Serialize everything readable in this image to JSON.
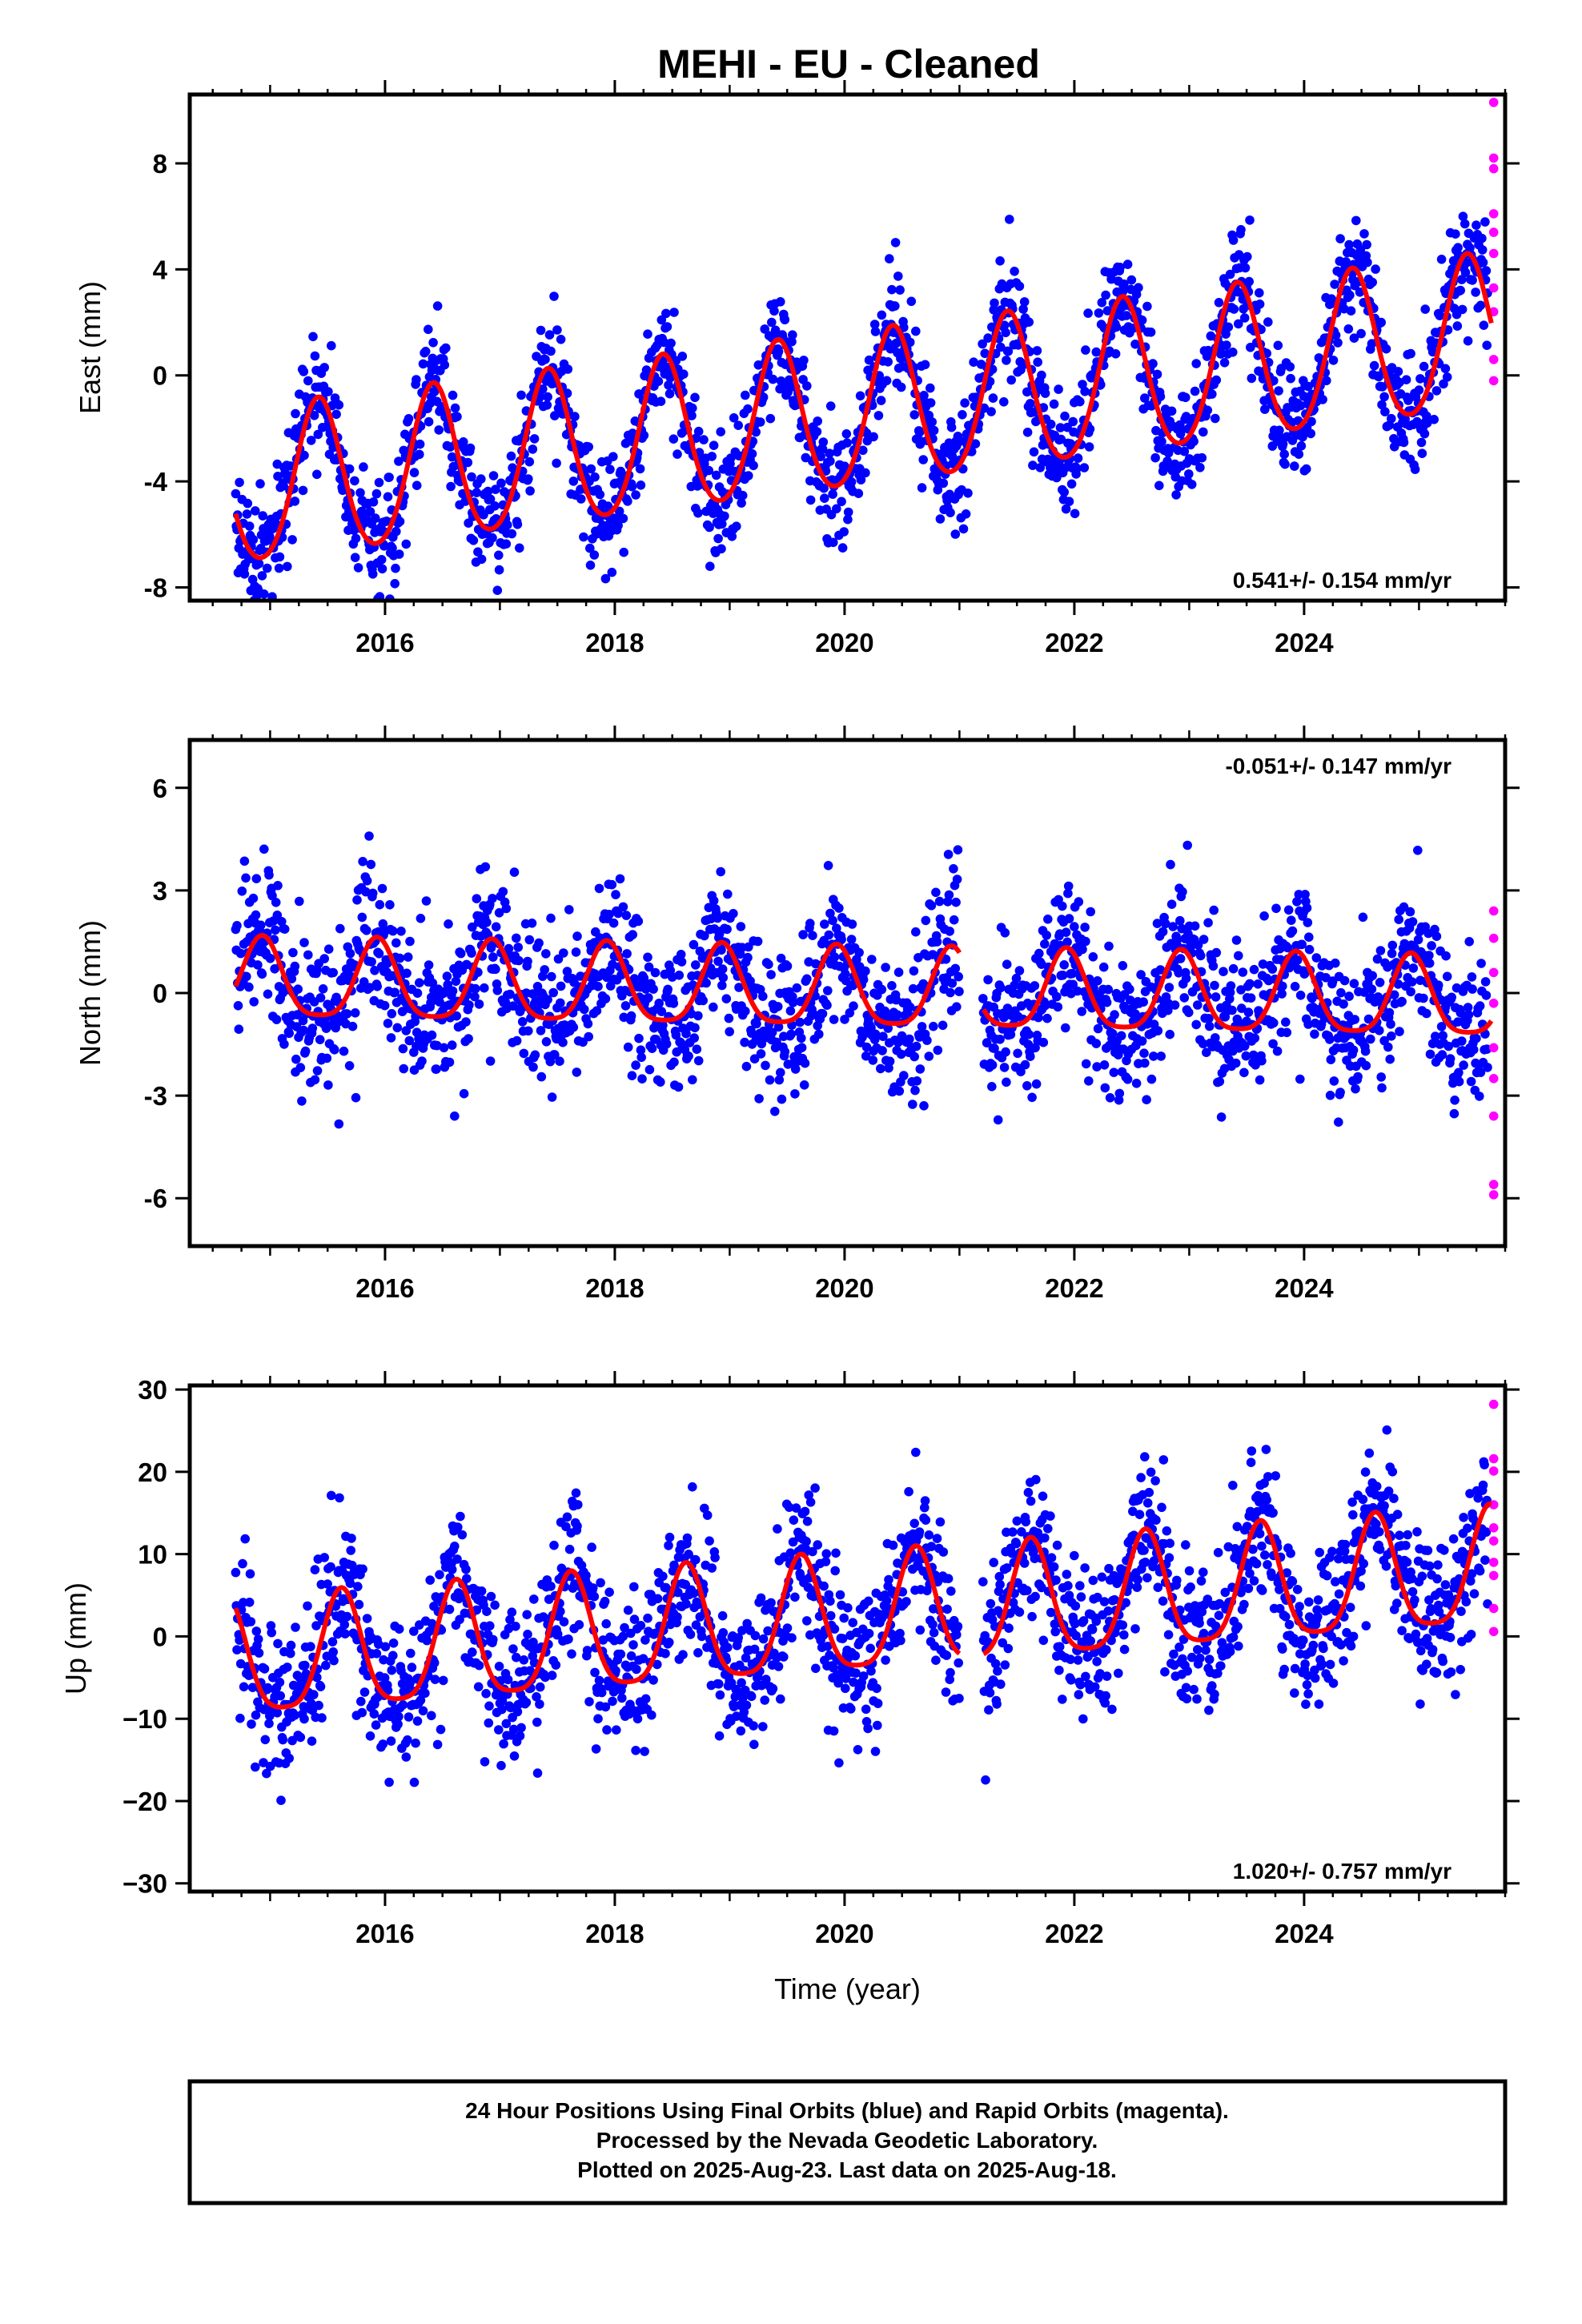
{
  "title": "MEHI  - EU - Cleaned",
  "footer": {
    "lines": [
      "24 Hour Positions Using Final Orbits (blue) and Rapid Orbits (magenta).",
      "Processed by the Nevada Geodetic Laboratory.",
      "Plotted on 2025-Aug-23. Last data on 2025-Aug-18."
    ]
  },
  "colors": {
    "final": "#0000ff",
    "rapid": "#ff00ff",
    "model": "#ff0000",
    "frame": "#000000"
  },
  "chart_data": [
    {
      "type": "scatter",
      "name": "east",
      "ylabel": "East (mm)",
      "xlabel": "",
      "rate": "0.541+/- 0.154 mm/yr",
      "rate_position": "bottom-right",
      "xlim": [
        2014.3,
        2025.75
      ],
      "ylim": [
        -8.5,
        10.6
      ],
      "xticks": [
        2016,
        2018,
        2020,
        2022,
        2024
      ],
      "xtick_labels": [
        "2016",
        "2018",
        "2020",
        "2022",
        "2024"
      ],
      "yticks": [
        -8,
        -4,
        0,
        4,
        8
      ],
      "ytick_labels": [
        "-8",
        "-4",
        "0",
        "4",
        "8"
      ],
      "data_start": 2014.7,
      "data_end": 2025.63,
      "model": {
        "offset": -4.4,
        "trend_mm_per_yr": 0.541,
        "annual_amplitude": 2.9,
        "annual_peak_year_fraction": 0.42,
        "semiannual_amplitude": 0.3
      },
      "scatter_sd": 1.05,
      "gaps": [],
      "rapid_y": [
        10.3,
        8.2,
        7.8,
        6.1,
        5.4,
        4.6,
        3.3,
        2.4,
        0.6,
        -0.2
      ]
    },
    {
      "type": "scatter",
      "name": "north",
      "ylabel": "North (mm)",
      "xlabel": "",
      "rate": "-0.051+/- 0.147 mm/yr",
      "rate_position": "top-right",
      "xlim": [
        2014.3,
        2025.75
      ],
      "ylim": [
        -7.4,
        7.4
      ],
      "xticks": [
        2016,
        2018,
        2020,
        2022,
        2024
      ],
      "xtick_labels": [
        "2016",
        "2018",
        "2020",
        "2022",
        "2024"
      ],
      "yticks": [
        -6,
        -3,
        0,
        3,
        6
      ],
      "ytick_labels": [
        "-6",
        "-3",
        "0",
        "3",
        "6"
      ],
      "data_start": 2014.7,
      "data_end": 2025.63,
      "model": {
        "offset": 0.3,
        "trend_mm_per_yr": -0.051,
        "annual_amplitude": 1.15,
        "annual_peak_year_fraction": 0.93,
        "semiannual_amplitude": 0.25
      },
      "scatter_sd": 1.05,
      "gaps": [
        [
          2021.0,
          2021.2
        ]
      ],
      "rapid_y": [
        2.4,
        1.6,
        0.6,
        -0.3,
        -1.6,
        -2.5,
        -3.6,
        -5.6,
        -5.9
      ]
    },
    {
      "type": "scatter",
      "name": "up",
      "ylabel": "Up (mm)",
      "xlabel": "Time (year)",
      "rate": "1.020+/- 0.757 mm/yr",
      "rate_position": "bottom-right",
      "xlim": [
        2014.3,
        2025.75
      ],
      "ylim": [
        -31,
        30.5
      ],
      "xticks": [
        2016,
        2018,
        2020,
        2022,
        2024
      ],
      "xtick_labels": [
        "2016",
        "2018",
        "2020",
        "2022",
        "2024"
      ],
      "yticks": [
        -30,
        -20,
        -10,
        0,
        10,
        20,
        30
      ],
      "ytick_labels": [
        "−30",
        "−20",
        "−10",
        "0",
        "10",
        "20",
        "30"
      ],
      "data_start": 2014.7,
      "data_end": 2025.63,
      "model": {
        "offset": -3.5,
        "trend_mm_per_yr": 1.02,
        "annual_amplitude": 7.0,
        "annual_peak_year_fraction": 0.62,
        "semiannual_amplitude": 1.5
      },
      "scatter_sd": 4.6,
      "gaps": [
        [
          2021.0,
          2021.2
        ]
      ],
      "rapid_y": [
        28.2,
        21.6,
        20.1,
        16.0,
        13.2,
        11.6,
        9.0,
        7.4,
        3.4,
        0.6
      ]
    }
  ]
}
